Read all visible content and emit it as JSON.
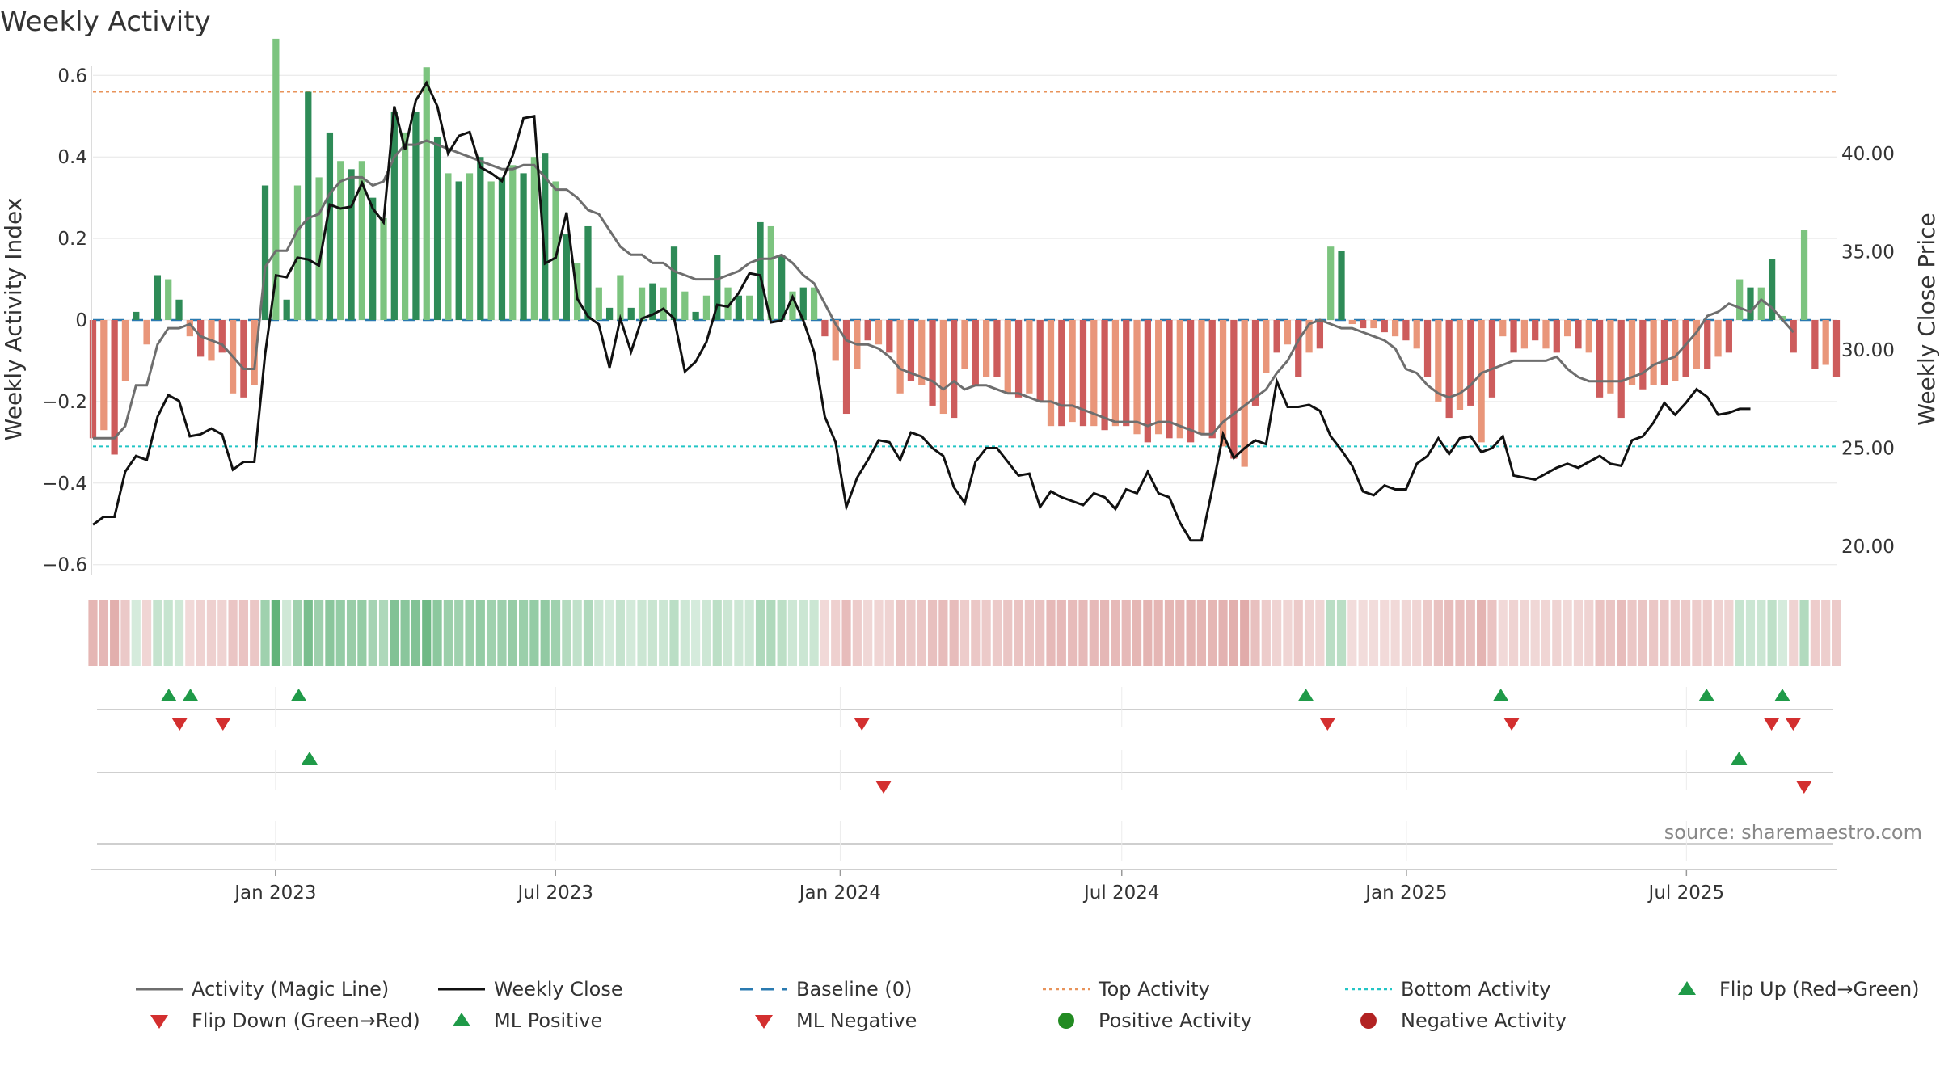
{
  "chart_data": {
    "type": "bar",
    "title": "Weekly Activity",
    "source": "source: sharemaestro.com",
    "left_axis": {
      "label": "Weekly Activity Index",
      "ylim": [
        -0.75,
        0.75
      ],
      "ticks": [
        0.6,
        0.4,
        0.2,
        0,
        -0.2,
        -0.4,
        -0.6
      ],
      "tick_labels": [
        "0.6",
        "0.4",
        "0.2",
        "0",
        "−0.2",
        "−0.4",
        "−0.6"
      ]
    },
    "right_axis": {
      "label": "Weekly Close Price",
      "ylim": [
        17.5,
        44.5
      ],
      "ticks": [
        40,
        35,
        30,
        25,
        20
      ],
      "tick_labels": [
        "40.00",
        "35.00",
        "30.00",
        "25.00",
        "20.00"
      ]
    },
    "x_axis": {
      "start": "2022-09-05",
      "end": "2025-10-06",
      "tick_dates": [
        "2023-01-01",
        "2023-07-01",
        "2024-01-01",
        "2024-07-01",
        "2025-01-01",
        "2025-07-01"
      ],
      "tick_labels": [
        "Jan 2023",
        "Jul 2023",
        "Jan 2024",
        "Jul 2024",
        "Jan 2025",
        "Jul 2025"
      ]
    },
    "top_activity": 0.56,
    "bottom_activity": -0.31,
    "baseline": 0,
    "activity": [
      -0.29,
      -0.27,
      -0.33,
      -0.15,
      0.02,
      -0.06,
      0.11,
      0.1,
      0.05,
      -0.04,
      -0.09,
      -0.1,
      -0.08,
      -0.18,
      -0.19,
      -0.16,
      0.33,
      0.69,
      0.05,
      0.33,
      0.56,
      0.35,
      0.46,
      0.39,
      0.37,
      0.39,
      0.3,
      0.25,
      0.51,
      0.46,
      0.51,
      0.62,
      0.45,
      0.36,
      0.34,
      0.36,
      0.4,
      0.34,
      0.35,
      0.38,
      0.36,
      0.4,
      0.41,
      0.34,
      0.21,
      0.14,
      0.23,
      0.08,
      0.03,
      0.11,
      0.03,
      0.08,
      0.09,
      0.08,
      0.18,
      0.07,
      0.02,
      0.06,
      0.16,
      0.08,
      0.06,
      0.06,
      0.24,
      0.23,
      0.16,
      0.07,
      0.08,
      0.08,
      -0.04,
      -0.1,
      -0.23,
      -0.12,
      -0.05,
      -0.06,
      -0.08,
      -0.18,
      -0.15,
      -0.16,
      -0.21,
      -0.23,
      -0.24,
      -0.12,
      -0.16,
      -0.14,
      -0.14,
      -0.18,
      -0.19,
      -0.18,
      -0.2,
      -0.26,
      -0.26,
      -0.25,
      -0.26,
      -0.26,
      -0.27,
      -0.26,
      -0.26,
      -0.28,
      -0.3,
      -0.28,
      -0.29,
      -0.29,
      -0.3,
      -0.28,
      -0.29,
      -0.31,
      -0.34,
      -0.36,
      -0.21,
      -0.13,
      -0.08,
      -0.06,
      -0.14,
      -0.08,
      -0.07,
      0.18,
      0.17,
      -0.01,
      -0.02,
      -0.02,
      -0.03,
      -0.04,
      -0.05,
      -0.07,
      -0.14,
      -0.2,
      -0.24,
      -0.22,
      -0.21,
      -0.3,
      -0.19,
      -0.04,
      -0.08,
      -0.07,
      -0.05,
      -0.07,
      -0.08,
      -0.04,
      -0.07,
      -0.08,
      -0.19,
      -0.18,
      -0.24,
      -0.16,
      -0.17,
      -0.16,
      -0.16,
      -0.15,
      -0.14,
      -0.12,
      -0.12,
      -0.09,
      -0.08,
      0.1,
      0.08,
      0.08,
      0.15,
      0.01,
      -0.08,
      0.22,
      -0.12,
      -0.11,
      -0.14
    ],
    "close": [
      21.1,
      21.5,
      21.5,
      23.8,
      24.6,
      24.4,
      26.6,
      27.7,
      27.4,
      25.6,
      25.7,
      26.0,
      25.7,
      23.9,
      24.3,
      24.3,
      29.8,
      33.8,
      33.7,
      34.7,
      34.6,
      34.3,
      37.4,
      37.2,
      37.3,
      38.5,
      37.2,
      36.5,
      42.4,
      40.2,
      42.7,
      43.6,
      42.4,
      40.0,
      40.9,
      41.1,
      39.3,
      39.0,
      38.6,
      39.9,
      41.8,
      41.9,
      34.4,
      34.7,
      37.0,
      32.6,
      31.7,
      31.3,
      29.1,
      31.6,
      29.9,
      31.6,
      31.8,
      32.1,
      31.6,
      28.9,
      29.4,
      30.4,
      32.3,
      32.2,
      32.9,
      33.9,
      33.8,
      31.4,
      31.5,
      32.7,
      31.5,
      29.9,
      26.6,
      25.3,
      22.0,
      23.5,
      24.4,
      25.4,
      25.3,
      24.4,
      25.8,
      25.6,
      25.0,
      24.6,
      23.0,
      22.2,
      24.3,
      25.0,
      25.0,
      24.3,
      23.6,
      23.7,
      22.0,
      22.8,
      22.5,
      22.3,
      22.1,
      22.7,
      22.5,
      21.9,
      22.9,
      22.7,
      23.8,
      22.7,
      22.5,
      21.2,
      20.3,
      20.3,
      22.9,
      25.7,
      24.5,
      25.0,
      25.4,
      25.2,
      28.4,
      27.1,
      27.1,
      27.2,
      26.9,
      25.6,
      24.9,
      24.1,
      22.8,
      22.6,
      23.1,
      22.9,
      22.9,
      24.2,
      24.6,
      25.5,
      24.7,
      25.5,
      25.6,
      24.8,
      25.0,
      25.6,
      23.6,
      23.5,
      23.4,
      23.7,
      24.0,
      24.2,
      24.0,
      24.3,
      24.6,
      24.2,
      24.1,
      25.4,
      25.6,
      26.3,
      27.3,
      26.7,
      27.3,
      28.0,
      27.6,
      26.7,
      26.8,
      27.0,
      27.0
    ],
    "magic_line": [
      -0.29,
      -0.29,
      -0.29,
      -0.26,
      -0.16,
      -0.16,
      -0.06,
      -0.02,
      -0.02,
      -0.01,
      -0.04,
      -0.05,
      -0.06,
      -0.09,
      -0.12,
      -0.12,
      0.13,
      0.17,
      0.17,
      0.22,
      0.25,
      0.26,
      0.31,
      0.34,
      0.35,
      0.35,
      0.33,
      0.34,
      0.4,
      0.43,
      0.43,
      0.44,
      0.43,
      0.42,
      0.41,
      0.4,
      0.39,
      0.38,
      0.37,
      0.37,
      0.38,
      0.38,
      0.35,
      0.32,
      0.32,
      0.3,
      0.27,
      0.26,
      0.22,
      0.18,
      0.16,
      0.16,
      0.14,
      0.14,
      0.12,
      0.11,
      0.1,
      0.1,
      0.1,
      0.11,
      0.12,
      0.14,
      0.15,
      0.15,
      0.16,
      0.14,
      0.11,
      0.09,
      0.04,
      -0.01,
      -0.05,
      -0.06,
      -0.06,
      -0.07,
      -0.09,
      -0.12,
      -0.13,
      -0.14,
      -0.15,
      -0.17,
      -0.15,
      -0.17,
      -0.16,
      -0.16,
      -0.17,
      -0.18,
      -0.18,
      -0.19,
      -0.2,
      -0.2,
      -0.21,
      -0.21,
      -0.22,
      -0.23,
      -0.24,
      -0.25,
      -0.25,
      -0.25,
      -0.26,
      -0.25,
      -0.25,
      -0.26,
      -0.27,
      -0.28,
      -0.28,
      -0.25,
      -0.23,
      -0.21,
      -0.19,
      -0.17,
      -0.13,
      -0.1,
      -0.05,
      -0.01,
      0.0,
      -0.01,
      -0.02,
      -0.02,
      -0.03,
      -0.04,
      -0.05,
      -0.07,
      -0.12,
      -0.13,
      -0.16,
      -0.18,
      -0.19,
      -0.18,
      -0.16,
      -0.13,
      -0.12,
      -0.11,
      -0.1,
      -0.1,
      -0.1,
      -0.1,
      -0.09,
      -0.12,
      -0.14,
      -0.15,
      -0.15,
      -0.15,
      -0.15,
      -0.14,
      -0.13,
      -0.11,
      -0.1,
      -0.09,
      -0.06,
      -0.03,
      0.01,
      0.02,
      0.04,
      0.03,
      0.02,
      0.05,
      0.03,
      0.0,
      -0.03
    ],
    "flip_up_row1": [
      "2022-10-24",
      "2022-11-07",
      "2023-01-16",
      "2024-10-28",
      "2025-03-03",
      "2025-07-14",
      "2025-09-01"
    ],
    "flip_down_row1": [
      "2022-10-31",
      "2022-11-28",
      "2024-01-15",
      "2024-11-11",
      "2025-03-10",
      "2025-08-25",
      "2025-09-08"
    ],
    "ml_positive": [
      "2023-01-23",
      "2025-08-04"
    ],
    "ml_negative": [
      "2024-01-29",
      "2025-09-15"
    ],
    "heat_strip": "daily activity tint per week (green = positive, red = negative)",
    "legend": [
      {
        "label": "Activity (Magic Line)",
        "symbol": "line",
        "color": "#6e6e6e"
      },
      {
        "label": "Weekly Close",
        "symbol": "line",
        "color": "#111111"
      },
      {
        "label": "Baseline (0)",
        "symbol": "dash",
        "color": "#2a7ab0"
      },
      {
        "label": "Top Activity",
        "symbol": "dots",
        "color": "#e8935a"
      },
      {
        "label": "Bottom Activity",
        "symbol": "dots",
        "color": "#22c5c5"
      },
      {
        "label": "Flip Up (Red→Green)",
        "symbol": "triangle-up",
        "color": "#1f9a48"
      },
      {
        "label": "Flip Down (Green→Red)",
        "symbol": "triangle-down",
        "color": "#d32f2f"
      },
      {
        "label": "ML Positive",
        "symbol": "triangle-up",
        "color": "#1f9a48"
      },
      {
        "label": "ML Negative",
        "symbol": "triangle-down",
        "color": "#d32f2f"
      },
      {
        "label": "Positive Activity",
        "symbol": "circle",
        "color": "#228b22"
      },
      {
        "label": "Negative Activity",
        "symbol": "circle",
        "color": "#b22222"
      }
    ],
    "colors": {
      "pos_strong": "#2e8b57",
      "pos_light": "#7cc47f",
      "neg_strong": "#cd5c5c",
      "neg_light": "#e9967a",
      "close_line": "#111111",
      "magic_line": "#6e6e6e",
      "baseline": "#2a7ab0",
      "top_activity": "#e8935a",
      "bottom_activity": "#22c5c5",
      "flip_up": "#1f9a48",
      "flip_down": "#d32f2f"
    }
  }
}
